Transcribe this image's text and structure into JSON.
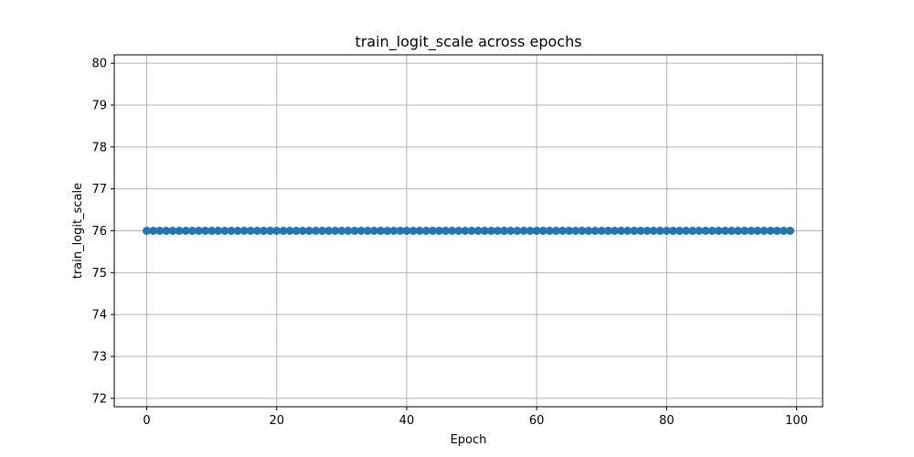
{
  "chart_data": {
    "type": "line",
    "title": "train_logit_scale across epochs",
    "xlabel": "Epoch",
    "ylabel": "train_logit_scale",
    "xlim": [
      -5,
      104
    ],
    "ylim": [
      71.8,
      80.2
    ],
    "x_ticks": [
      0,
      20,
      40,
      60,
      80,
      100
    ],
    "y_ticks": [
      72,
      73,
      74,
      75,
      76,
      77,
      78,
      79,
      80
    ],
    "grid": true,
    "marker": "circle",
    "series": [
      {
        "color": "#1f77b4",
        "x": [
          0,
          1,
          2,
          3,
          4,
          5,
          6,
          7,
          8,
          9,
          10,
          11,
          12,
          13,
          14,
          15,
          16,
          17,
          18,
          19,
          20,
          21,
          22,
          23,
          24,
          25,
          26,
          27,
          28,
          29,
          30,
          31,
          32,
          33,
          34,
          35,
          36,
          37,
          38,
          39,
          40,
          41,
          42,
          43,
          44,
          45,
          46,
          47,
          48,
          49,
          50,
          51,
          52,
          53,
          54,
          55,
          56,
          57,
          58,
          59,
          60,
          61,
          62,
          63,
          64,
          65,
          66,
          67,
          68,
          69,
          70,
          71,
          72,
          73,
          74,
          75,
          76,
          77,
          78,
          79,
          80,
          81,
          82,
          83,
          84,
          85,
          86,
          87,
          88,
          89,
          90,
          91,
          92,
          93,
          94,
          95,
          96,
          97,
          98,
          99
        ],
        "y": [
          76,
          76,
          76,
          76,
          76,
          76,
          76,
          76,
          76,
          76,
          76,
          76,
          76,
          76,
          76,
          76,
          76,
          76,
          76,
          76,
          76,
          76,
          76,
          76,
          76,
          76,
          76,
          76,
          76,
          76,
          76,
          76,
          76,
          76,
          76,
          76,
          76,
          76,
          76,
          76,
          76,
          76,
          76,
          76,
          76,
          76,
          76,
          76,
          76,
          76,
          76,
          76,
          76,
          76,
          76,
          76,
          76,
          76,
          76,
          76,
          76,
          76,
          76,
          76,
          76,
          76,
          76,
          76,
          76,
          76,
          76,
          76,
          76,
          76,
          76,
          76,
          76,
          76,
          76,
          76,
          76,
          76,
          76,
          76,
          76,
          76,
          76,
          76,
          76,
          76,
          76,
          76,
          76,
          76,
          76,
          76,
          76,
          76,
          76,
          76
        ]
      }
    ]
  }
}
